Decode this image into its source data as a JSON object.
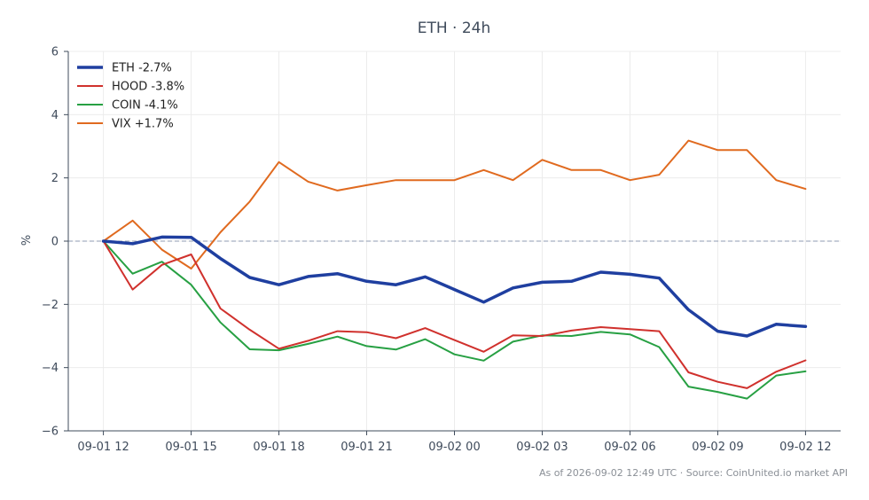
{
  "chart_data": {
    "type": "line",
    "title": "ETH · 24h",
    "ylabel": "%",
    "xlabel": "",
    "ylim": [
      -6,
      6
    ],
    "yticks": [
      6,
      4,
      2,
      0,
      -2,
      -4,
      -6
    ],
    "ytick_labels": [
      "6",
      "4",
      "2",
      "0",
      "−2",
      "−4",
      "−6"
    ],
    "x_hours": [
      0,
      1,
      2,
      3,
      4,
      5,
      6,
      7,
      8,
      9,
      10,
      11,
      12,
      13,
      14,
      15,
      16,
      17,
      18,
      19,
      20,
      21,
      22,
      23,
      24
    ],
    "x_tick_hours": [
      0,
      3,
      6,
      9,
      12,
      15,
      18,
      21,
      24
    ],
    "x_tick_labels": [
      "09-01 12",
      "09-01 15",
      "09-01 18",
      "09-01 21",
      "09-02 00",
      "09-02 03",
      "09-02 06",
      "09-02 09",
      "09-02 12"
    ],
    "xlim_hours": [
      -1.2,
      25.2
    ],
    "grid": true,
    "zero_line": true,
    "legend_position": "top-left",
    "series": [
      {
        "name": "ETH -2.7%",
        "color": "#1f3fa0",
        "width": 3.5,
        "values": [
          0,
          -0.08,
          0.13,
          0.12,
          -0.55,
          -1.15,
          -1.38,
          -1.12,
          -1.03,
          -1.27,
          -1.38,
          -1.13,
          -1.53,
          -1.93,
          -1.48,
          -1.3,
          -1.27,
          -0.98,
          -1.05,
          -1.17,
          -2.17,
          -2.85,
          -3.0,
          -2.63,
          -2.7
        ]
      },
      {
        "name": "HOOD -3.8%",
        "color": "#d0312d",
        "width": 2,
        "values": [
          0,
          -1.53,
          -0.75,
          -0.42,
          -2.13,
          -2.8,
          -3.4,
          -3.15,
          -2.85,
          -2.88,
          -3.07,
          -2.75,
          -3.13,
          -3.5,
          -2.98,
          -3.0,
          -2.83,
          -2.72,
          -2.78,
          -2.85,
          -4.15,
          -4.45,
          -4.65,
          -4.13,
          -3.77
        ]
      },
      {
        "name": "COIN -4.1%",
        "color": "#27a043",
        "width": 2,
        "values": [
          0,
          -1.03,
          -0.65,
          -1.38,
          -2.57,
          -3.42,
          -3.45,
          -3.25,
          -3.02,
          -3.32,
          -3.43,
          -3.1,
          -3.58,
          -3.78,
          -3.18,
          -2.98,
          -3.0,
          -2.87,
          -2.95,
          -3.35,
          -4.6,
          -4.77,
          -4.98,
          -4.25,
          -4.12
        ]
      },
      {
        "name": "VIX +1.7%",
        "color": "#e06a1f",
        "width": 2,
        "values": [
          0,
          0.65,
          -0.27,
          -0.87,
          0.28,
          1.25,
          2.5,
          1.88,
          1.6,
          1.77,
          1.93,
          1.93,
          1.93,
          2.25,
          1.93,
          2.57,
          2.25,
          2.25,
          1.93,
          2.1,
          3.18,
          2.88,
          2.88,
          1.93,
          1.65
        ]
      }
    ],
    "footer": "As of 2026-09-02 12:49 UTC · Source: CoinUnited.io market API"
  }
}
